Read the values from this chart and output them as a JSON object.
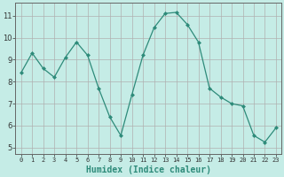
{
  "x": [
    0,
    1,
    2,
    3,
    4,
    5,
    6,
    7,
    8,
    9,
    10,
    11,
    12,
    13,
    14,
    15,
    16,
    17,
    18,
    19,
    20,
    21,
    22,
    23
  ],
  "y": [
    8.4,
    9.3,
    8.6,
    8.2,
    9.1,
    9.8,
    9.2,
    7.7,
    6.4,
    5.55,
    7.4,
    9.2,
    10.45,
    11.1,
    11.15,
    10.6,
    9.8,
    7.7,
    7.3,
    7.0,
    6.9,
    5.55,
    5.25,
    5.9
  ],
  "line_color": "#2e8b7a",
  "marker": "D",
  "marker_size": 2.0,
  "bg_color": "#c5ece6",
  "grid_color": "#b0b0b0",
  "xlabel": "Humidex (Indice chaleur)",
  "xlabel_fontsize": 7,
  "ylabel_ticks": [
    5,
    6,
    7,
    8,
    9,
    10,
    11
  ],
  "xlim": [
    -0.5,
    23.5
  ],
  "ylim": [
    4.7,
    11.6
  ],
  "xtick_fontsize": 5.0,
  "ytick_fontsize": 6.0
}
